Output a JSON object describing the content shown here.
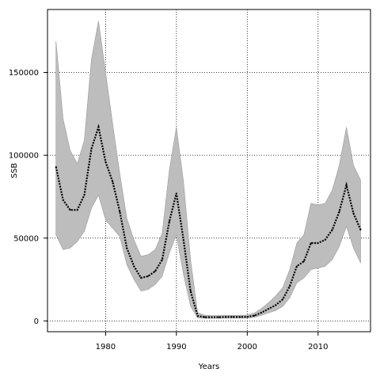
{
  "chart_data": {
    "type": "line",
    "title": "",
    "xlabel": "Years",
    "ylabel": "SSB",
    "xlim": [
      1971.8,
      2017.4
    ],
    "ylim": [
      -6500,
      188000
    ],
    "grid": true,
    "grid_style": "dotted",
    "x_ticks": [
      1980,
      1990,
      2000,
      2010
    ],
    "x_tick_labels": [
      "1980",
      "1990",
      "2000",
      "2010"
    ],
    "y_ticks": [
      0,
      50000,
      100000,
      150000
    ],
    "y_tick_labels": [
      "0",
      "50000",
      "100000",
      "150000"
    ],
    "colors": {
      "band": "#bdbdbd",
      "band_edge": "#9a9a9a",
      "line": "#000000",
      "grid": "#000000",
      "axes": "#000000"
    },
    "x": [
      1973,
      1974,
      1975,
      1976,
      1977,
      1978,
      1979,
      1980,
      1981,
      1982,
      1983,
      1984,
      1985,
      1986,
      1987,
      1988,
      1989,
      1990,
      1991,
      1992,
      1993,
      1994,
      1995,
      1996,
      1997,
      1998,
      1999,
      2000,
      2001,
      2002,
      2003,
      2004,
      2005,
      2006,
      2007,
      2008,
      2009,
      2010,
      2011,
      2012,
      2013,
      2014,
      2015,
      2016
    ],
    "series": [
      {
        "role": "upper",
        "values": [
          169000,
          122000,
          103000,
          95000,
          109000,
          158000,
          181000,
          150000,
          119000,
          89000,
          62000,
          49000,
          39000,
          40000,
          43000,
          53000,
          91000,
          117000,
          84000,
          37000,
          5000,
          3400,
          3300,
          3300,
          3400,
          3400,
          3400,
          3600,
          4800,
          7500,
          11000,
          15000,
          20000,
          31000,
          47000,
          52000,
          71000,
          70000,
          71000,
          79000,
          94000,
          117000,
          94000,
          85000
        ]
      },
      {
        "role": "estimate",
        "values": [
          93000,
          73000,
          67000,
          67000,
          76000,
          104000,
          117000,
          96000,
          84000,
          66000,
          44000,
          33000,
          26000,
          27000,
          30000,
          37000,
          60000,
          77000,
          49000,
          18000,
          3000,
          2300,
          2300,
          2300,
          2400,
          2400,
          2400,
          2500,
          3200,
          5000,
          7300,
          9500,
          13000,
          21000,
          33000,
          36000,
          47000,
          47000,
          49000,
          55000,
          66000,
          82000,
          65000,
          55000
        ]
      },
      {
        "role": "lower",
        "values": [
          52000,
          43000,
          44000,
          48000,
          54000,
          68000,
          76000,
          61000,
          56000,
          51000,
          34000,
          25000,
          18000,
          19000,
          22000,
          27000,
          41000,
          52000,
          28000,
          9000,
          1800,
          1600,
          1600,
          1600,
          1700,
          1700,
          1700,
          1700,
          2200,
          3400,
          4900,
          6200,
          8800,
          14000,
          23000,
          26000,
          31000,
          32000,
          33000,
          37000,
          45000,
          57000,
          44000,
          35000
        ]
      }
    ]
  }
}
